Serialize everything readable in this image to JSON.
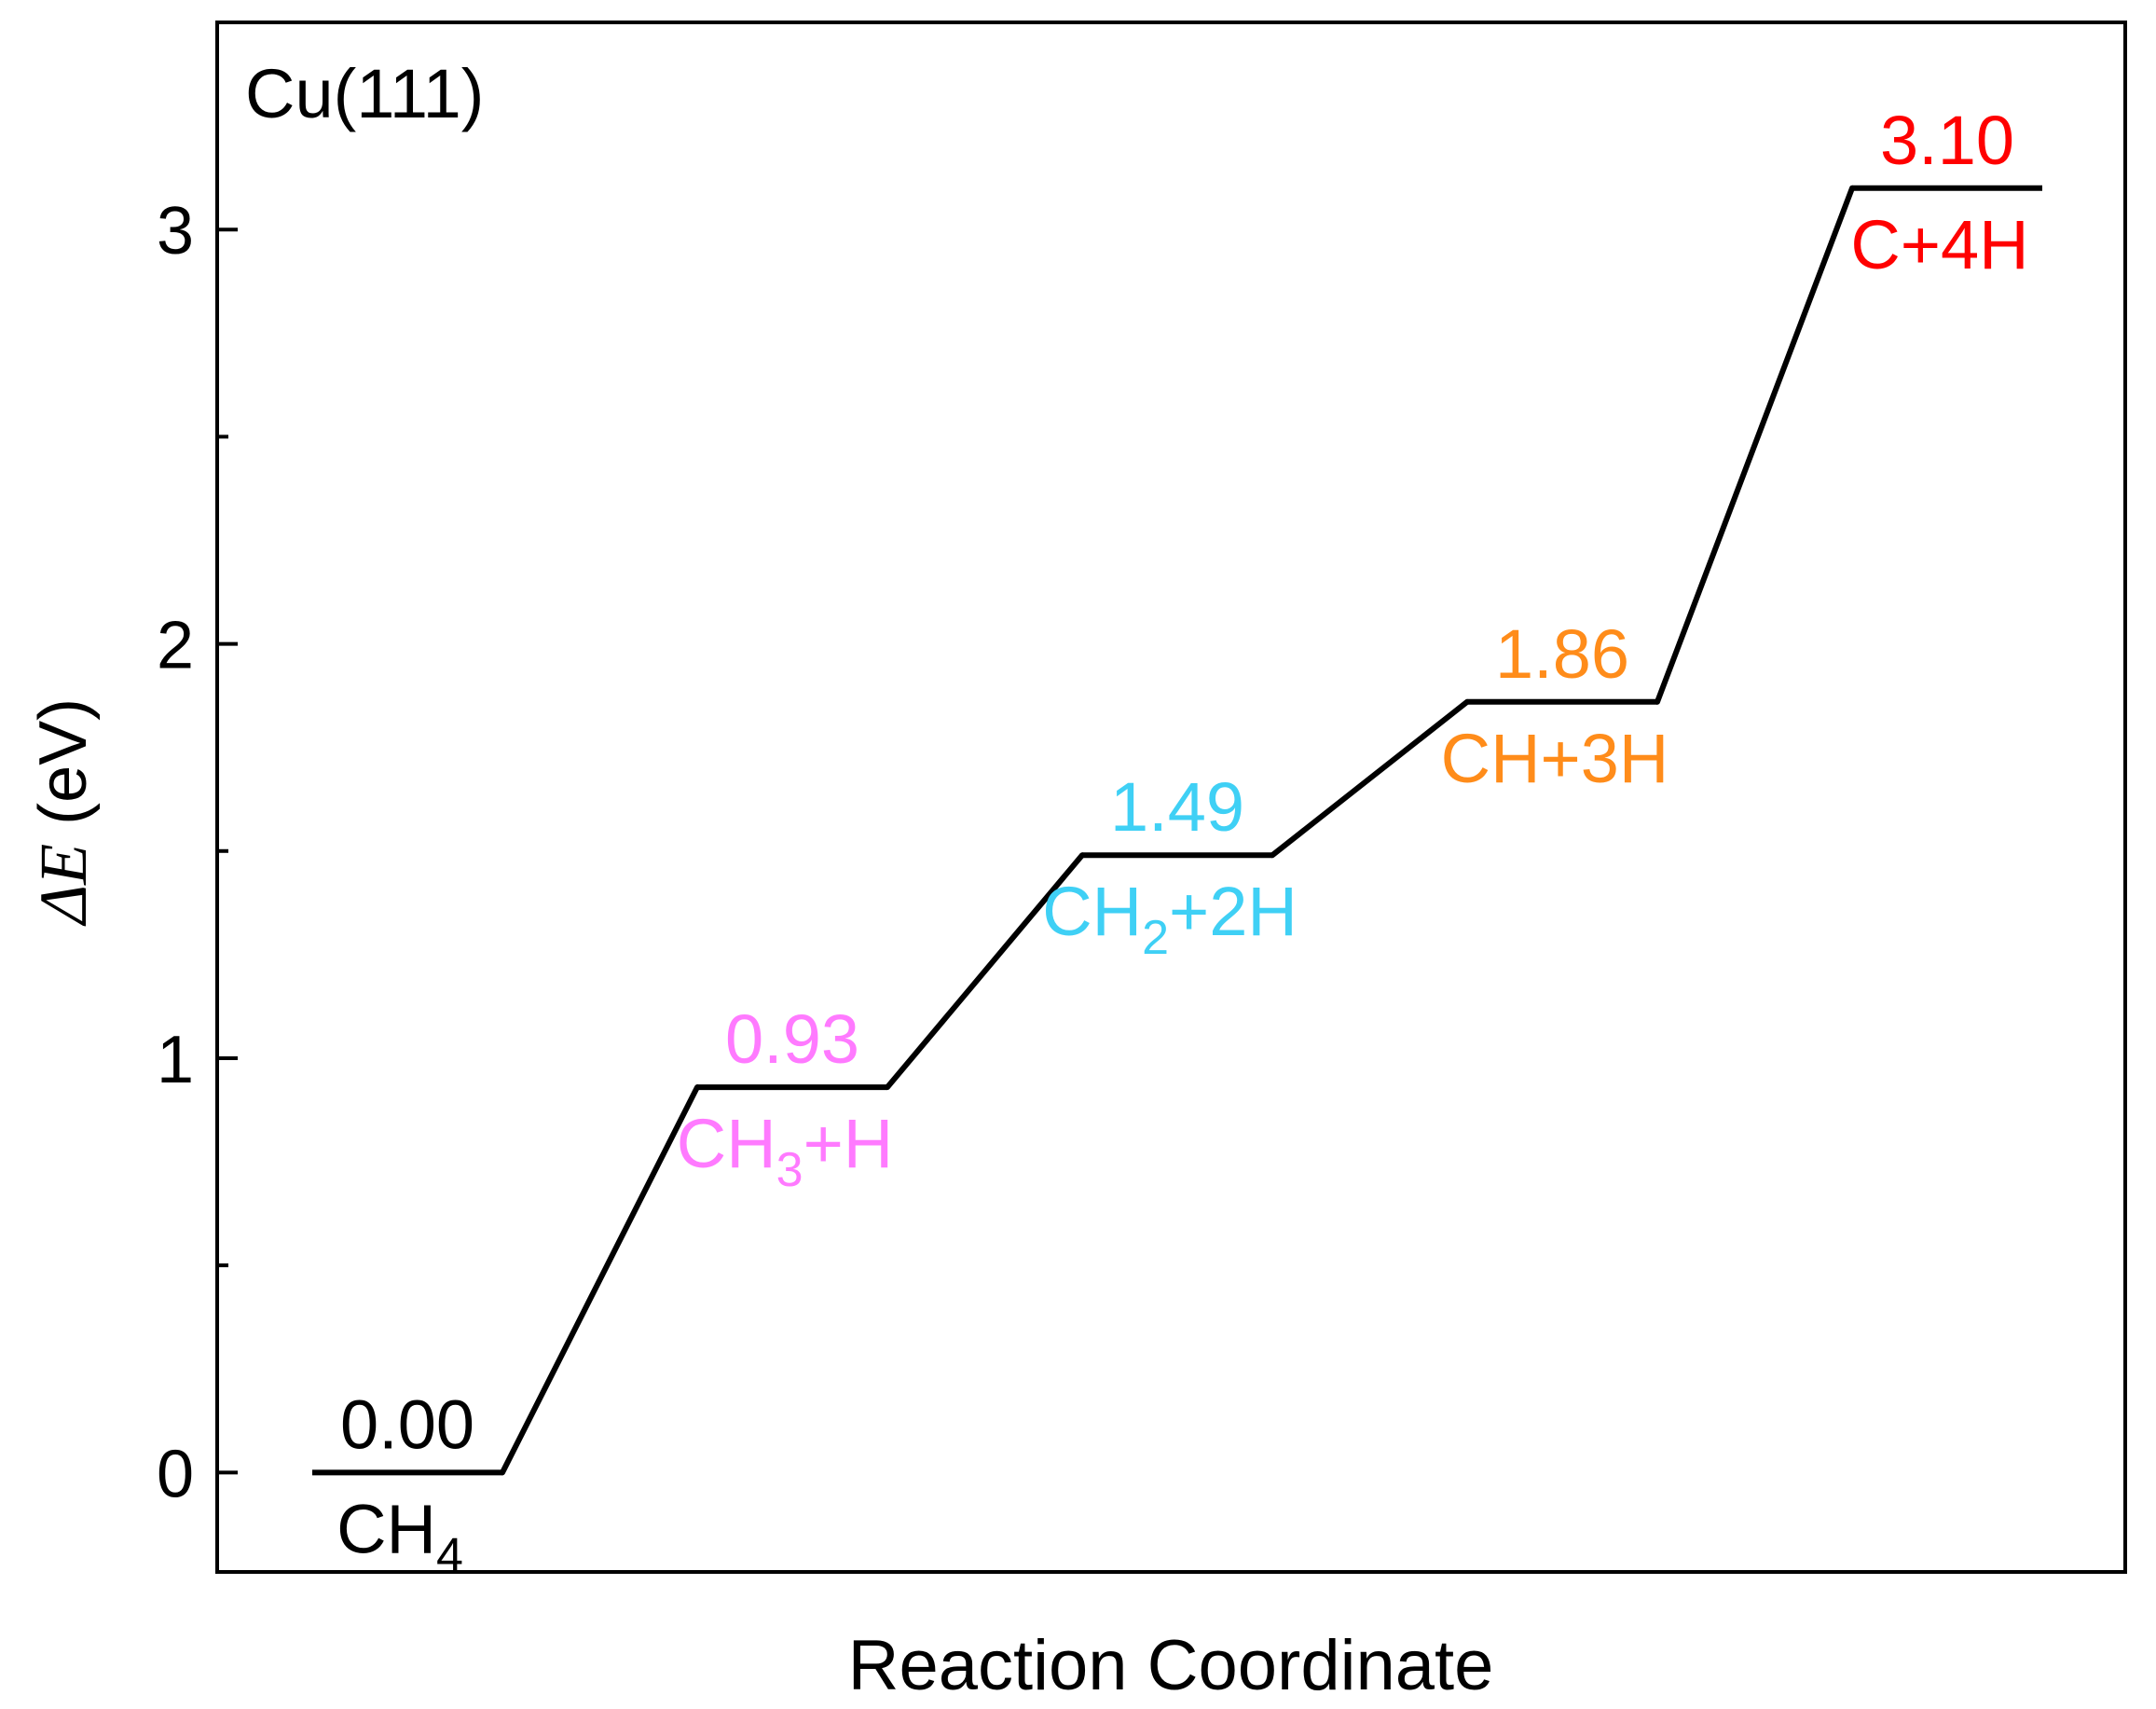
{
  "chart_data": {
    "type": "line",
    "panel_label": "Cu(111)",
    "xlabel": "Reaction Coordinate",
    "ylabel": {
      "symbol": "ΔE",
      "unit": " (eV)"
    },
    "ylim": [
      -0.24,
      3.5
    ],
    "yticks": [
      {
        "value": 0,
        "label": "0"
      },
      {
        "value": 1,
        "label": "1"
      },
      {
        "value": 2,
        "label": "2"
      },
      {
        "value": 3,
        "label": "3"
      }
    ],
    "yminor": [
      0.5,
      1.5,
      2.5
    ],
    "grid": false,
    "line_color": "#000000",
    "series": [
      {
        "x": [
          1,
          2,
          3,
          4,
          5
        ],
        "values": [
          0.0,
          0.93,
          1.49,
          1.86,
          3.1
        ],
        "value_labels": [
          "0.00",
          "0.93",
          "1.49",
          "1.86",
          "3.10"
        ],
        "state_labels": [
          {
            "main": "CH",
            "sub": "4",
            "rest": ""
          },
          {
            "main": "CH",
            "sub": "3",
            "rest": "+H"
          },
          {
            "main": "CH",
            "sub": "2",
            "rest": "+2H"
          },
          {
            "main": "CH+3H",
            "sub": "",
            "rest": ""
          },
          {
            "main": "C+4H",
            "sub": "",
            "rest": ""
          }
        ],
        "colors": [
          "#000000",
          "#ff7aff",
          "#3fd0f5",
          "#ff8c1a",
          "#ff0000"
        ]
      }
    ]
  }
}
